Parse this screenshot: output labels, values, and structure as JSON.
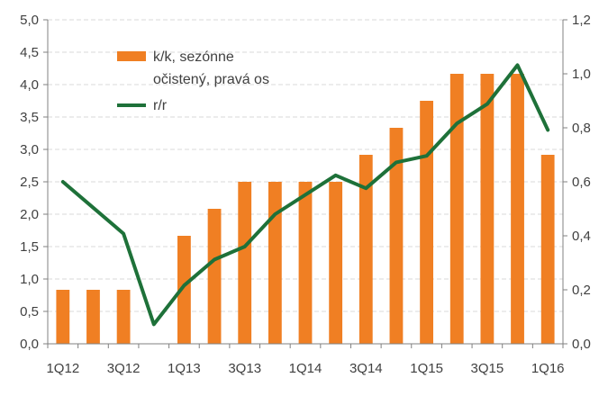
{
  "chart_data": {
    "type": "bar+line",
    "categories": [
      "1Q12",
      "2Q12",
      "3Q12",
      "4Q12",
      "1Q13",
      "2Q13",
      "3Q13",
      "4Q13",
      "1Q14",
      "2Q14",
      "3Q14",
      "4Q14",
      "1Q15",
      "2Q15",
      "3Q15",
      "4Q15",
      "1Q16"
    ],
    "x_tick_labels": [
      "1Q12",
      "3Q12",
      "1Q13",
      "3Q13",
      "1Q14",
      "3Q14",
      "1Q15",
      "3Q15",
      "1Q16"
    ],
    "series": [
      {
        "name": "k/k, sezónne očistený, pravá os",
        "type": "bar",
        "axis": "right",
        "color": "#F07F23",
        "values": [
          0.2,
          0.2,
          0.2,
          0.0,
          0.4,
          0.5,
          0.6,
          0.6,
          0.6,
          0.6,
          0.7,
          0.8,
          0.9,
          1.0,
          1.0,
          1.0,
          0.7
        ]
      },
      {
        "name": "r/r",
        "type": "line",
        "axis": "left",
        "color": "#1E7139",
        "values": [
          2.5,
          2.1,
          1.7,
          0.3,
          0.9,
          1.3,
          1.5,
          2.0,
          2.3,
          2.6,
          2.4,
          2.8,
          2.9,
          3.4,
          3.7,
          4.3,
          3.3
        ]
      }
    ],
    "y_left": {
      "min": 0,
      "max": 5,
      "ticks": [
        "0,0",
        "0,5",
        "1,0",
        "1,5",
        "2,0",
        "2,5",
        "3,0",
        "3,5",
        "4,0",
        "4,5",
        "5,0"
      ]
    },
    "y_right": {
      "min": 0,
      "max": 1.2,
      "ticks": [
        "0,0",
        "0,2",
        "0,4",
        "0,6",
        "0,8",
        "1,0",
        "1,2"
      ]
    },
    "legend": {
      "position": "top-left",
      "bar_label_line1": "k/k, sezónne",
      "bar_label_line2": "očistený, pravá os",
      "line_label": "r/r"
    },
    "gridlines": true,
    "axis_color": "#808080",
    "grid_color": "#D9D9D9"
  }
}
